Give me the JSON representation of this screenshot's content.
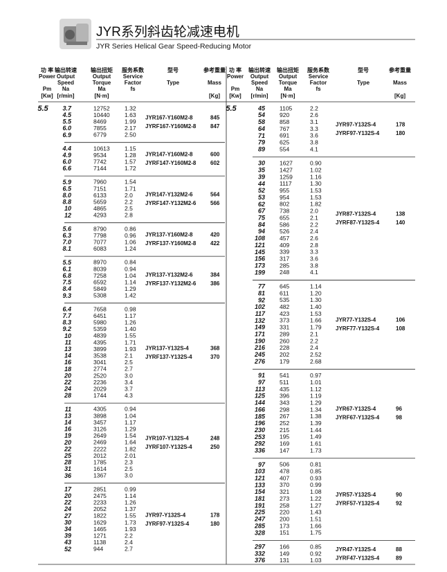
{
  "header": {
    "title": "JYR系列斜齿轮减速电机",
    "subtitle": "JYR Series Helical Gear Speed-Reducing Motor"
  },
  "columns": {
    "power": [
      "功 率",
      "Power",
      "Pm",
      "[Kw]"
    ],
    "speed": [
      "输出转速",
      "Output",
      "Speed",
      "Na",
      "[r/min]"
    ],
    "torque": [
      "输出扭矩",
      "Output",
      "Torque",
      "Ma",
      "[N·m]"
    ],
    "factor": [
      "服务系数",
      "Service",
      "Factor",
      "fs"
    ],
    "type": [
      "型号",
      "Type"
    ],
    "mass": [
      "参考重量",
      "Mass",
      "[Kg]"
    ]
  },
  "left": {
    "pm": "5.5",
    "groups": [
      {
        "rows": [
          [
            "3.7",
            "12752",
            "1.32"
          ],
          [
            "4.5",
            "10440",
            "1.63"
          ],
          [
            "5.5",
            "8469",
            "1.99"
          ],
          [
            "6.0",
            "7855",
            "2.17"
          ],
          [
            "6.9",
            "6779",
            "2.50"
          ]
        ],
        "models": [
          [
            "JYR167-Y160M2-8",
            "845"
          ],
          [
            "JYRF167-Y160M2-8",
            "847"
          ]
        ]
      },
      {
        "rows": [
          [
            "4.4",
            "10613",
            "1.15"
          ],
          [
            "4.9",
            "9534",
            "1.28"
          ],
          [
            "6.0",
            "7742",
            "1.57"
          ],
          [
            "6.6",
            "7144",
            "1.72"
          ]
        ],
        "models": [
          [
            "JYR147-Y160M2-8",
            "600"
          ],
          [
            "JYRF147-Y160M2-8",
            "602"
          ]
        ]
      },
      {
        "rows": [
          [
            "5.9",
            "7960",
            "1.54"
          ],
          [
            "6.5",
            "7151",
            "1.71"
          ],
          [
            "8.0",
            "6133",
            "2.0"
          ],
          [
            "8.8",
            "5659",
            "2.2"
          ],
          [
            "10",
            "4865",
            "2.5"
          ],
          [
            "12",
            "4293",
            "2.8"
          ]
        ],
        "models": [
          [
            "JYR147-Y132M2-6",
            "564"
          ],
          [
            "JYRF147-Y132M2-6",
            "566"
          ]
        ]
      },
      {
        "rows": [
          [
            "5.6",
            "8790",
            "0.86"
          ],
          [
            "6.3",
            "7798",
            "0.96"
          ],
          [
            "7.0",
            "7077",
            "1.06"
          ],
          [
            "8.1",
            "6083",
            "1.24"
          ]
        ],
        "models": [
          [
            "JYR137-Y160M2-8",
            "420"
          ],
          [
            "JYRF137-Y160M2-8",
            "422"
          ]
        ]
      },
      {
        "rows": [
          [
            "5.5",
            "8970",
            "0.84"
          ],
          [
            "6.1",
            "8039",
            "0.94"
          ],
          [
            "6.8",
            "7258",
            "1.04"
          ],
          [
            "7.5",
            "6592",
            "1.14"
          ],
          [
            "8.4",
            "5849",
            "1.29"
          ],
          [
            "9.3",
            "5308",
            "1.42"
          ]
        ],
        "models": [
          [
            "JYR137-Y132M2-6",
            "384"
          ],
          [
            "JYRF137-Y132M2-6",
            "386"
          ]
        ]
      },
      {
        "rows": [
          [
            "6.4",
            "7658",
            "0.98"
          ],
          [
            "7.7",
            "6451",
            "1.17"
          ],
          [
            "8.3",
            "5980",
            "1.26"
          ],
          [
            "9.2",
            "5359",
            "1.40"
          ],
          [
            "10",
            "4839",
            "1.55"
          ],
          [
            "11",
            "4395",
            "1.71"
          ],
          [
            "13",
            "3899",
            "1.93"
          ],
          [
            "14",
            "3538",
            "2.1"
          ],
          [
            "16",
            "3041",
            "2.5"
          ],
          [
            "18",
            "2774",
            "2.7"
          ],
          [
            "20",
            "2520",
            "3.0"
          ],
          [
            "22",
            "2236",
            "3.4"
          ],
          [
            "24",
            "2029",
            "3.7"
          ],
          [
            "28",
            "1744",
            "4.3"
          ]
        ],
        "models": [
          [
            "JYR137-Y132S-4",
            "368"
          ],
          [
            "JYRF137-Y132S-4",
            "370"
          ]
        ]
      },
      {
        "rows": [
          [
            "11",
            "4305",
            "0.94"
          ],
          [
            "13",
            "3898",
            "1.04"
          ],
          [
            "14",
            "3457",
            "1.17"
          ],
          [
            "16",
            "3126",
            "1.29"
          ],
          [
            "19",
            "2649",
            "1.54"
          ],
          [
            "20",
            "2469",
            "1.64"
          ],
          [
            "22",
            "2222",
            "1.82"
          ],
          [
            "25",
            "2012",
            "2.01"
          ],
          [
            "28",
            "1785",
            "2.3"
          ],
          [
            "31",
            "1614",
            "2.5"
          ],
          [
            "36",
            "1367",
            "3.0"
          ]
        ],
        "models": [
          [
            "JYR107-Y132S-4",
            "248"
          ],
          [
            "JYRF107-Y132S-4",
            "250"
          ]
        ]
      },
      {
        "rows": [
          [
            "17",
            "2851",
            "0.99"
          ],
          [
            "20",
            "2475",
            "1.14"
          ],
          [
            "22",
            "2233",
            "1.26"
          ],
          [
            "24",
            "2052",
            "1.37"
          ],
          [
            "27",
            "1822",
            "1.55"
          ],
          [
            "30",
            "1629",
            "1.73"
          ],
          [
            "34",
            "1465",
            "1.93"
          ],
          [
            "39",
            "1271",
            "2.2"
          ],
          [
            "43",
            "1138",
            "2.4"
          ],
          [
            "52",
            "944",
            "2.7"
          ]
        ],
        "models": [
          [
            "JYR97-Y132S-4",
            "178"
          ],
          [
            "JYRF97-Y132S-4",
            "180"
          ]
        ]
      }
    ]
  },
  "right": {
    "pm": "5.5",
    "groups": [
      {
        "rows": [
          [
            "45",
            "1105",
            "2.2"
          ],
          [
            "54",
            "920",
            "2.6"
          ],
          [
            "58",
            "858",
            "3.1"
          ],
          [
            "64",
            "767",
            "3.3"
          ],
          [
            "71",
            "691",
            "3.6"
          ],
          [
            "79",
            "625",
            "3.8"
          ],
          [
            "89",
            "554",
            "4.1"
          ]
        ],
        "models": [
          [
            "JYR97-Y132S-4",
            "178"
          ],
          [
            "JYRF97-Y132S-4",
            "180"
          ]
        ]
      },
      {
        "rows": [
          [
            "30",
            "1627",
            "0.90"
          ],
          [
            "35",
            "1427",
            "1.02"
          ],
          [
            "39",
            "1259",
            "1.16"
          ],
          [
            "44",
            "1117",
            "1.30"
          ],
          [
            "52",
            "955",
            "1.53"
          ],
          [
            "53",
            "954",
            "1.53"
          ],
          [
            "62",
            "802",
            "1.82"
          ],
          [
            "67",
            "738",
            "2.0"
          ],
          [
            "75",
            "655",
            "2.1"
          ],
          [
            "84",
            "586",
            "2.2"
          ],
          [
            "94",
            "526",
            "2.4"
          ],
          [
            "108",
            "457",
            "2.6"
          ],
          [
            "121",
            "409",
            "2.8"
          ],
          [
            "145",
            "339",
            "3.3"
          ],
          [
            "156",
            "317",
            "3.6"
          ],
          [
            "173",
            "285",
            "3.8"
          ],
          [
            "199",
            "248",
            "4.1"
          ]
        ],
        "models": [
          [
            "JYR87-Y132S-4",
            "138"
          ],
          [
            "JYRF87-Y132S-4",
            "140"
          ]
        ]
      },
      {
        "rows": [
          [
            "77",
            "645",
            "1.14"
          ],
          [
            "81",
            "611",
            "1.20"
          ],
          [
            "92",
            "535",
            "1.30"
          ],
          [
            "102",
            "482",
            "1.40"
          ],
          [
            "117",
            "423",
            "1.53"
          ],
          [
            "132",
            "373",
            "1.66"
          ],
          [
            "149",
            "331",
            "1.79"
          ],
          [
            "171",
            "289",
            "2.1"
          ],
          [
            "190",
            "260",
            "2.2"
          ],
          [
            "216",
            "228",
            "2.4"
          ],
          [
            "245",
            "202",
            "2.52"
          ],
          [
            "276",
            "179",
            "2.68"
          ]
        ],
        "models": [
          [
            "JYR77-Y132S-4",
            "106"
          ],
          [
            "JYRF77-Y132S-4",
            "108"
          ]
        ]
      },
      {
        "rows": [
          [
            "91",
            "541",
            "0.97"
          ],
          [
            "97",
            "511",
            "1.01"
          ],
          [
            "113",
            "435",
            "1.12"
          ],
          [
            "125",
            "396",
            "1.19"
          ],
          [
            "144",
            "343",
            "1.29"
          ],
          [
            "166",
            "298",
            "1.34"
          ],
          [
            "185",
            "267",
            "1.38"
          ],
          [
            "196",
            "252",
            "1.39"
          ],
          [
            "230",
            "215",
            "1.44"
          ],
          [
            "253",
            "195",
            "1.49"
          ],
          [
            "292",
            "169",
            "1.61"
          ],
          [
            "336",
            "147",
            "1.73"
          ]
        ],
        "models": [
          [
            "JYR67-Y132S-4",
            "96"
          ],
          [
            "JYRF67-Y132S-4",
            "98"
          ]
        ]
      },
      {
        "rows": [
          [
            "97",
            "506",
            "0.81"
          ],
          [
            "103",
            "478",
            "0.85"
          ],
          [
            "121",
            "407",
            "0.93"
          ],
          [
            "133",
            "370",
            "0.99"
          ],
          [
            "154",
            "321",
            "1.08"
          ],
          [
            "181",
            "273",
            "1.22"
          ],
          [
            "191",
            "258",
            "1.27"
          ],
          [
            "225",
            "220",
            "1.43"
          ],
          [
            "247",
            "200",
            "1.51"
          ],
          [
            "285",
            "173",
            "1.66"
          ],
          [
            "328",
            "151",
            "1.75"
          ]
        ],
        "models": [
          [
            "JYR57-Y132S-4",
            "90"
          ],
          [
            "JYRF57-Y132S-4",
            "92"
          ]
        ]
      },
      {
        "rows": [
          [
            "297",
            "166",
            "0.85"
          ],
          [
            "332",
            "149",
            "0.92"
          ],
          [
            "376",
            "131",
            "1.03"
          ]
        ],
        "models": [
          [
            "JYR47-Y132S-4",
            "88"
          ],
          [
            "JYRF47-Y132S-4",
            "89"
          ]
        ]
      }
    ]
  }
}
